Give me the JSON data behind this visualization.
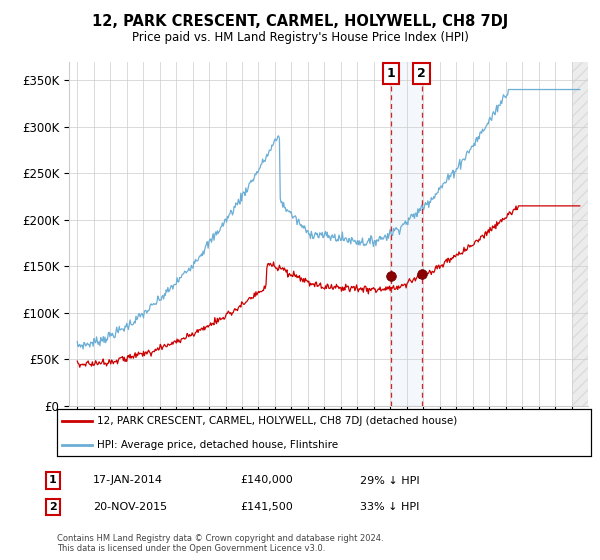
{
  "title": "12, PARK CRESCENT, CARMEL, HOLYWELL, CH8 7DJ",
  "subtitle": "Price paid vs. HM Land Registry's House Price Index (HPI)",
  "hpi_label": "HPI: Average price, detached house, Flintshire",
  "property_label": "12, PARK CRESCENT, CARMEL, HOLYWELL, CH8 7DJ (detached house)",
  "transaction1_date": "17-JAN-2014",
  "transaction1_price": "£140,000",
  "transaction1_hpi": "29% ↓ HPI",
  "transaction2_date": "20-NOV-2015",
  "transaction2_price": "£141,500",
  "transaction2_hpi": "33% ↓ HPI",
  "footer": "Contains HM Land Registry data © Crown copyright and database right 2024.\nThis data is licensed under the Open Government Licence v3.0.",
  "hpi_color": "#6baed6",
  "property_color": "#cc0000",
  "marker_color": "#8b0000",
  "transaction_x1": 2014.04,
  "transaction_x2": 2015.9,
  "ylim": [
    0,
    370000
  ],
  "xlim_start": 1994.5,
  "xlim_end": 2026.0,
  "yticks": [
    0,
    50000,
    100000,
    150000,
    200000,
    250000,
    300000,
    350000
  ],
  "ytick_labels": [
    "£0",
    "£50K",
    "£100K",
    "£150K",
    "£200K",
    "£250K",
    "£300K",
    "£350K"
  ],
  "background_color": "#ffffff",
  "grid_color": "#cccccc"
}
